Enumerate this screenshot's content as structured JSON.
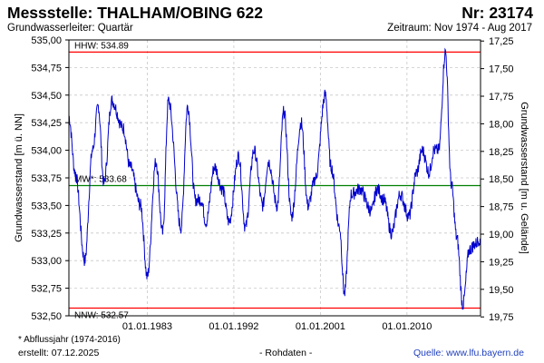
{
  "header": {
    "title": "Messstelle: THALHAM/OBING 622",
    "number": "Nr: 23174",
    "subtitle": "Grundwasserleiter: Quartär",
    "period": "Zeitraum: Nov 1974 - Aug 2017"
  },
  "footer": {
    "note": "* Abflussjahr (1974-2016)",
    "created": "erstellt:  07.12.2025",
    "rawdata": "- Rohdaten -",
    "source": "Quelle:  www.lfu.bayern.de"
  },
  "colors": {
    "series": "#0000cc",
    "extreme": "#ff0000",
    "mean": "#008000",
    "grid": "#c8c8c8"
  },
  "chart_data": {
    "type": "line",
    "ylabel": "Grundwasserstand [m ü. NN]",
    "ylabel_right": "Grundwasserstand [m u. Gelände]",
    "ylim": [
      532.5,
      535.0
    ],
    "y_ticks": [
      "535,00",
      "534,75",
      "534,50",
      "534,25",
      "534,00",
      "533,75",
      "533,50",
      "533,25",
      "533,00",
      "532,75",
      "532,50"
    ],
    "y_ticks_right": [
      "17,25",
      "17,50",
      "17,75",
      "18,00",
      "18,25",
      "18,50",
      "18,75",
      "19,00",
      "19,25",
      "19,50",
      "19,75"
    ],
    "x_ticks": [
      "01.01.1983",
      "01.01.1992",
      "01.01.2001",
      "01.01.2010"
    ],
    "reference_lines": [
      {
        "label": "HHW: 534.89",
        "value": 534.89
      },
      {
        "label": "MW*: 533.68",
        "value": 533.68
      },
      {
        "label": "NNW: 532.57",
        "value": 532.57
      }
    ],
    "series": [
      {
        "x": [
          1974.85,
          1975.5,
          1976.5,
          1977.3,
          1977.9,
          1978.5,
          1979.3,
          1980.5,
          1981.2,
          1982.3,
          1983.0,
          1983.9,
          1984.6,
          1985.2,
          1986.5,
          1987.2,
          1988.0,
          1988.6,
          1989.1,
          1990.0,
          1990.8,
          1991.5,
          1992.5,
          1993.2,
          1994.1,
          1995.0,
          1995.6,
          1996.5,
          1997.2,
          1998.0,
          1999.0,
          1999.7,
          2000.5,
          2001.5,
          2002.1,
          2003.0,
          2003.5,
          2004.2,
          2005.1,
          2006.3,
          2006.9,
          2007.6,
          2008.4,
          2009.3,
          2010.2,
          2011.0,
          2011.6,
          2012.3,
          2012.8,
          2013.3,
          2014.0,
          2014.6,
          2015.2,
          2015.8,
          2016.5,
          2017.1,
          2017.6
        ],
        "y": [
          534.3,
          533.8,
          533.0,
          534.0,
          534.4,
          533.7,
          534.45,
          534.2,
          533.85,
          533.5,
          532.85,
          533.9,
          533.25,
          534.45,
          533.3,
          534.4,
          533.55,
          533.55,
          533.35,
          533.85,
          533.65,
          533.35,
          533.95,
          533.3,
          534.0,
          533.5,
          533.9,
          533.5,
          534.35,
          533.4,
          534.25,
          533.5,
          533.75,
          534.5,
          533.85,
          533.3,
          532.7,
          533.6,
          533.65,
          533.45,
          533.65,
          533.55,
          533.25,
          533.6,
          533.4,
          533.8,
          534.0,
          533.8,
          534.0,
          534.0,
          534.89,
          533.7,
          533.2,
          532.6,
          533.1,
          533.15,
          533.2
        ]
      }
    ]
  }
}
